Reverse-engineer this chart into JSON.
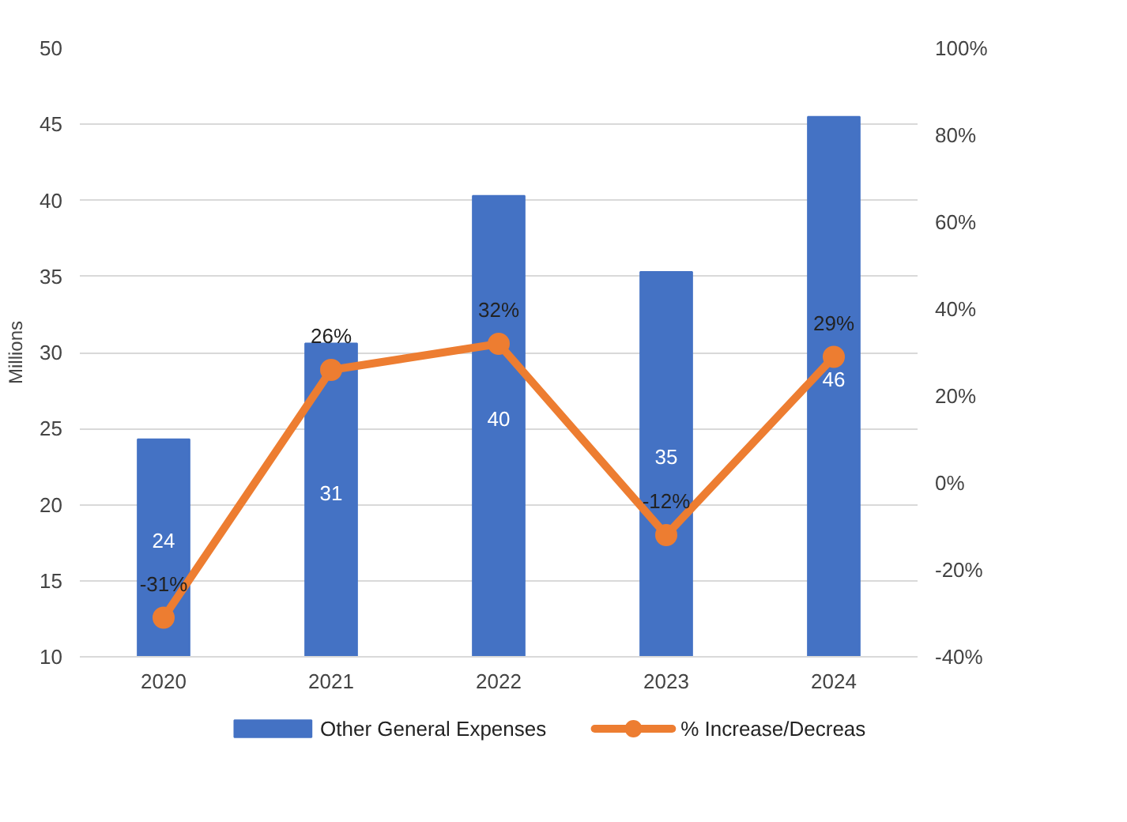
{
  "chart_data": {
    "type": "bar",
    "categories": [
      "2020",
      "2021",
      "2022",
      "2023",
      "2024"
    ],
    "ylabel": "Millions",
    "ylim": [
      10,
      50
    ],
    "yticks": [
      10,
      15,
      20,
      25,
      30,
      35,
      40,
      45,
      50
    ],
    "y2lim": [
      -40,
      100
    ],
    "y2ticks": [
      {
        "value": -40,
        "label": "-40%"
      },
      {
        "value": -20,
        "label": "-20%"
      },
      {
        "value": 0,
        "label": "0%"
      },
      {
        "value": 20,
        "label": "20%"
      },
      {
        "value": 40,
        "label": "40%"
      },
      {
        "value": 60,
        "label": "60%"
      },
      {
        "value": 80,
        "label": "80%"
      },
      {
        "value": 100,
        "label": "100%"
      }
    ],
    "grid": "y",
    "legend": "bottom",
    "series": [
      {
        "name": "Other General Expenses",
        "color": "#4472c4",
        "values": [
          24.3,
          30.6,
          40.3,
          35.3,
          45.5
        ],
        "value_labels": [
          "24",
          "31",
          "40",
          "35",
          "46"
        ]
      },
      {
        "name": "% Increase/Decreas",
        "type": "line",
        "axis": "y2",
        "color": "#ed7d31",
        "marker": "circle",
        "values": [
          -31,
          26,
          32,
          -12,
          29
        ],
        "value_labels": [
          "-31%",
          "26%",
          "32%",
          "-12%",
          "29%"
        ]
      }
    ]
  }
}
